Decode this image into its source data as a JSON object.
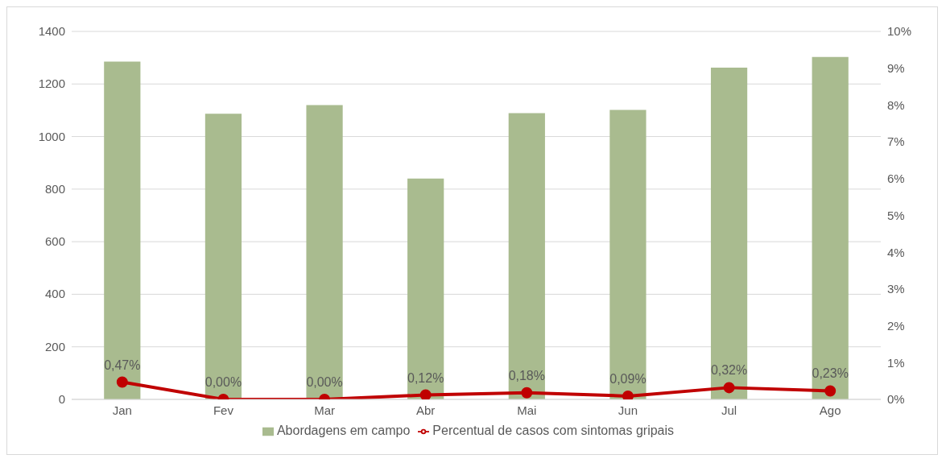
{
  "chart_data": {
    "type": "bar",
    "categories": [
      "Jan",
      "Fev",
      "Mar",
      "Abr",
      "Mai",
      "Jun",
      "Jul",
      "Ago"
    ],
    "series": [
      {
        "name": "Abordagens em campo",
        "color": "#a9bb8f",
        "values": [
          1285,
          1087,
          1120,
          840,
          1089,
          1101,
          1262,
          1303
        ]
      },
      {
        "name": "Percentual de casos com sintomas gripais",
        "type": "line",
        "axis": "y2",
        "color": "#c00000",
        "marker": "circle",
        "values": [
          0.47,
          0,
          0,
          0.12,
          0.18,
          0.09,
          0.32,
          0.23
        ],
        "value_labels": [
          "0,47%",
          "0,00%",
          "0,00%",
          "0,12%",
          "0,18%",
          "0,09%",
          "0,32%",
          "0,23%"
        ]
      }
    ],
    "ylim": [
      0,
      1400
    ],
    "yticks": [
      0,
      200,
      400,
      600,
      800,
      1000,
      1200,
      1400
    ],
    "y2lim": [
      0,
      10
    ],
    "y2ticks": [
      {
        "value": 0,
        "label": "0%"
      },
      {
        "value": 1,
        "label": "1%"
      },
      {
        "value": 2,
        "label": "2%"
      },
      {
        "value": 3,
        "label": "3%"
      },
      {
        "value": 4,
        "label": "4%"
      },
      {
        "value": 5,
        "label": "5%"
      },
      {
        "value": 6,
        "label": "6%"
      },
      {
        "value": 7,
        "label": "7%"
      },
      {
        "value": 8,
        "label": "8%"
      },
      {
        "value": 9,
        "label": "9%"
      },
      {
        "value": 10,
        "label": "10%"
      }
    ],
    "grid": "y",
    "legend": "bottom"
  }
}
